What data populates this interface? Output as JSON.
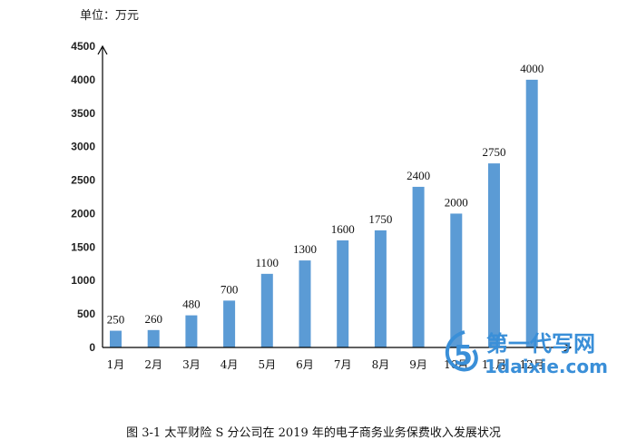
{
  "header": {
    "unit": "单位：万元"
  },
  "caption": "图 3-1  太平财险 S 分公司在 2019 年的电子商务业务保费收入发展状况",
  "watermark": {
    "line1": "第一代写网",
    "line2": "1daixie.com"
  },
  "colors": {
    "bar": "#5b9bd5",
    "axis": "#000000",
    "watermark": "#3a8fd8"
  },
  "chart_data": {
    "type": "bar",
    "categories": [
      "1月",
      "2月",
      "3月",
      "4月",
      "5月",
      "6月",
      "7月",
      "8月",
      "9月",
      "10月",
      "11月",
      "12月"
    ],
    "series": [
      {
        "values": [
          250,
          260,
          480,
          700,
          1100,
          1300,
          1600,
          1750,
          2400,
          2000,
          2750,
          4000
        ]
      }
    ],
    "yticks": [
      0,
      500,
      1000,
      1500,
      2000,
      2500,
      3000,
      3500,
      4000,
      4500
    ],
    "ylim": [
      0,
      4500
    ],
    "ylabel": "单位：万元",
    "grid": false,
    "legend": "none",
    "data_labels": true
  }
}
